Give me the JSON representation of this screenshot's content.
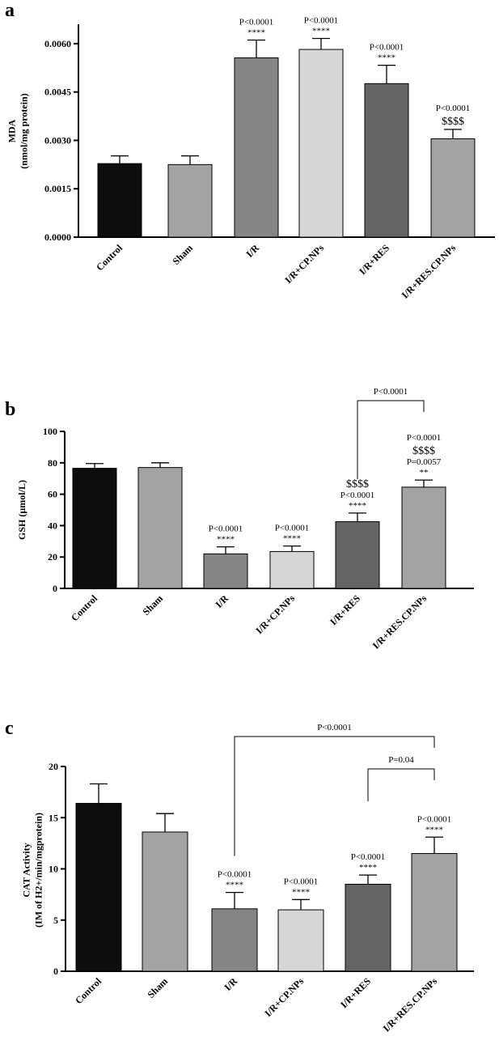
{
  "chart_data": [
    {
      "type": "bar",
      "panel": "a",
      "categories": [
        "Control",
        "Sham",
        "I/R",
        "I/R+CP.NPs",
        "I/R+RES",
        "I/R+RES.CP.NPs"
      ],
      "values": [
        0.00228,
        0.00225,
        0.00556,
        0.00582,
        0.00476,
        0.00305
      ],
      "errors": [
        0.00024,
        0.00027,
        0.00055,
        0.00034,
        0.00057,
        0.00029
      ],
      "colors": [
        "#0d0d0d",
        "#a3a3a3",
        "#858585",
        "#d6d6d6",
        "#646464",
        "#a3a3a3"
      ],
      "ylabel_lines": [
        "MDA",
        "(nmol/mg protein)"
      ],
      "ylim": [
        0,
        0.0066
      ],
      "yticks": [
        0,
        0.0015,
        0.003,
        0.0045,
        0.006
      ],
      "ytick_labels": [
        "0.0000",
        "0.0015",
        "0.0030",
        "0.0045",
        "0.0060"
      ],
      "annotations": [
        [],
        [],
        [
          "P<0.0001",
          "****"
        ],
        [
          "P<0.0001",
          "****"
        ],
        [
          "P<0.0001",
          "****"
        ],
        [
          "P<0.0001",
          "$$$$"
        ]
      ],
      "brackets": []
    },
    {
      "type": "bar",
      "panel": "b",
      "categories": [
        "Control",
        "Sham",
        "I/R",
        "I/R+CP.NPs",
        "I/R+RES",
        "I/R+RES.CP.NPs"
      ],
      "values": [
        76.5,
        77,
        22,
        23.5,
        42.5,
        64.5
      ],
      "errors": [
        3,
        3,
        4.5,
        3.5,
        5.5,
        4.5
      ],
      "colors": [
        "#0d0d0d",
        "#a3a3a3",
        "#858585",
        "#d6d6d6",
        "#646464",
        "#a3a3a3"
      ],
      "ylabel_lines": [
        "GSH (µmol/L)"
      ],
      "ylim": [
        0,
        100
      ],
      "yticks": [
        0,
        20,
        40,
        60,
        80,
        100
      ],
      "ytick_labels": [
        "0",
        "20",
        "40",
        "60",
        "80",
        "100"
      ],
      "annotations": [
        [],
        [],
        [
          "P<0.0001",
          "****"
        ],
        [
          "P<0.0001",
          "****"
        ],
        [
          "$$$$",
          "P<0.0001",
          "****"
        ],
        [
          "P<0.0001",
          "$$$$",
          "P=0.0057",
          "**"
        ]
      ],
      "brackets": [
        {
          "from": 4,
          "to": 5,
          "label": "P<0.0001"
        }
      ]
    },
    {
      "type": "bar",
      "panel": "c",
      "categories": [
        "Control",
        "Sham",
        "I/R",
        "I/R+CP.NPs",
        "I/R+RES",
        "I/R+RES.CP.NPs"
      ],
      "values": [
        16.4,
        13.6,
        6.1,
        6.0,
        8.5,
        11.5
      ],
      "errors": [
        1.9,
        1.8,
        1.6,
        1.0,
        0.9,
        1.6
      ],
      "colors": [
        "#0d0d0d",
        "#a3a3a3",
        "#858585",
        "#d6d6d6",
        "#646464",
        "#a3a3a3"
      ],
      "ylabel_lines": [
        "CAT Activity",
        "(IM of H2+/min/mgprotein)"
      ],
      "ylim": [
        0,
        20
      ],
      "yticks": [
        0,
        5,
        10,
        15,
        20
      ],
      "ytick_labels": [
        "0",
        "5",
        "10",
        "15",
        "20"
      ],
      "annotations": [
        [],
        [],
        [
          "P<0.0001",
          "****"
        ],
        [
          "P<0.0001",
          "****"
        ],
        [
          "P<0.0001",
          "****"
        ],
        [
          "P<0.0001",
          "****"
        ]
      ],
      "brackets": [
        {
          "from": 2,
          "to": 5,
          "label": "P<0.0001"
        },
        {
          "from": 4,
          "to": 5,
          "label": "P=0.04"
        }
      ]
    }
  ]
}
